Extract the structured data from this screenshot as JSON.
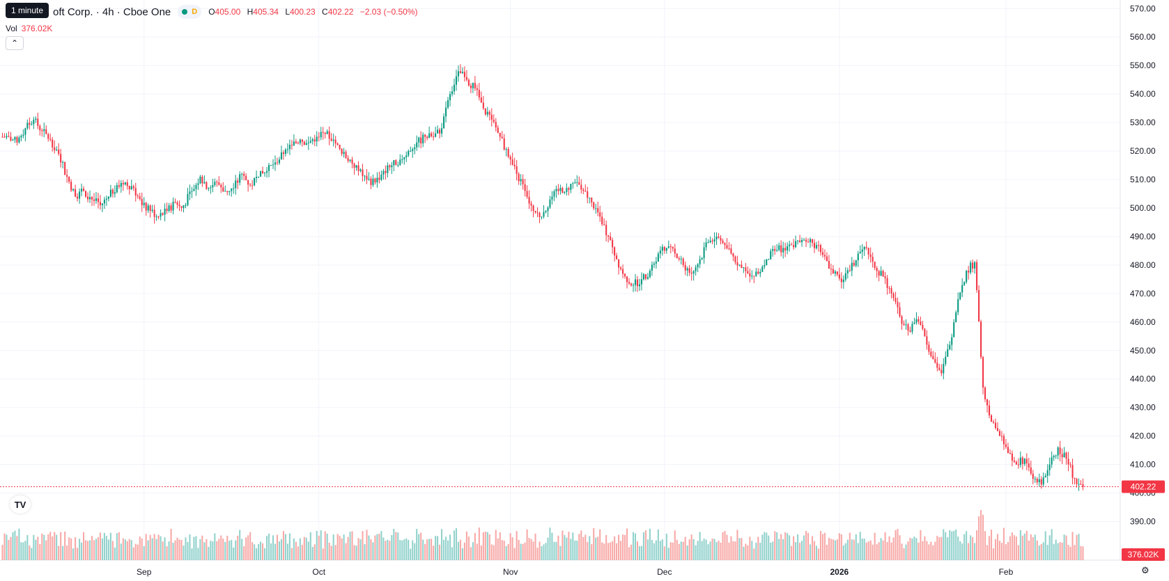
{
  "header": {
    "tooltip": "1 minute",
    "title": "oft Corp. · 4h · Cboe One",
    "status_badge": "D",
    "ohlc": {
      "o_label": "O",
      "o": "405.00",
      "h_label": "H",
      "h": "405.34",
      "l_label": "L",
      "l": "400.23",
      "c_label": "C",
      "c": "402.22",
      "change": "−2.03 (−0.50%)"
    },
    "vol_label": "Vol",
    "vol_value": "376.02K"
  },
  "controls": {
    "collapse_icon": "chevron-up-icon",
    "collapse_glyph": "⌃",
    "logo_icon": "tradingview-logo-icon",
    "logo_text": "TV",
    "settings_icon": "gear-icon",
    "settings_glyph": "⚙"
  },
  "colors": {
    "up": "#089981",
    "down": "#f23645",
    "up_volume": "#92d2cc",
    "down_volume": "#f7a9a7",
    "grid": "#f0f3fa",
    "last_price_line": "#f23645"
  },
  "chart_data": {
    "type": "candlestick",
    "interval": "4h",
    "y_axis": {
      "min": 385,
      "max": 573,
      "ticks": [
        570,
        560,
        550,
        540,
        530,
        520,
        510,
        500,
        490,
        480,
        470,
        460,
        450,
        440,
        430,
        420,
        410,
        400,
        390
      ],
      "tick_labels": [
        "570.00",
        "560.00",
        "550.00",
        "540.00",
        "530.00",
        "520.00",
        "510.00",
        "500.00",
        "490.00",
        "480.00",
        "470.00",
        "460.00",
        "450.00",
        "440.00",
        "430.00",
        "420.00",
        "410.00",
        "400.00",
        "390.00"
      ],
      "position": "right"
    },
    "x_axis": {
      "labels": [
        "Sep",
        "Oct",
        "Nov",
        "Dec",
        "2026",
        "Feb"
      ],
      "label_bar_index": [
        34,
        76,
        122,
        159,
        201,
        241
      ]
    },
    "last_price": 402.22,
    "last_price_label": "402.22",
    "last_volume_label": "376.02K",
    "grid": true,
    "series": [
      {
        "kind": "close_path_daily",
        "closes": [
          525,
          523,
          528,
          531,
          527,
          524,
          519,
          511,
          504,
          506,
          503,
          501,
          504,
          508,
          509,
          507,
          501,
          499,
          497,
          499,
          502,
          501,
          506,
          511,
          507,
          509,
          506,
          507,
          512,
          508,
          511,
          513,
          516,
          519,
          522,
          524,
          523,
          525,
          526,
          524,
          519,
          517,
          513,
          510,
          509,
          513,
          515,
          517,
          520,
          523,
          525,
          525,
          528,
          540,
          548,
          545,
          542,
          535,
          531,
          525,
          518,
          512,
          506,
          499,
          497,
          503,
          506,
          507,
          509,
          506,
          502,
          497,
          490,
          482,
          476,
          473,
          475,
          478,
          484,
          486,
          484,
          480,
          477,
          482,
          488,
          490,
          487,
          483,
          479,
          476,
          477,
          482,
          485,
          486,
          487,
          488,
          488,
          487,
          483,
          477,
          474,
          478,
          484,
          486,
          479,
          476,
          470,
          462,
          457,
          461,
          455,
          447,
          442,
          452,
          468,
          478,
          481,
          437,
          425,
          420,
          414,
          410,
          412,
          405,
          403,
          410,
          416,
          412,
          405,
          402.22
        ]
      }
    ]
  }
}
